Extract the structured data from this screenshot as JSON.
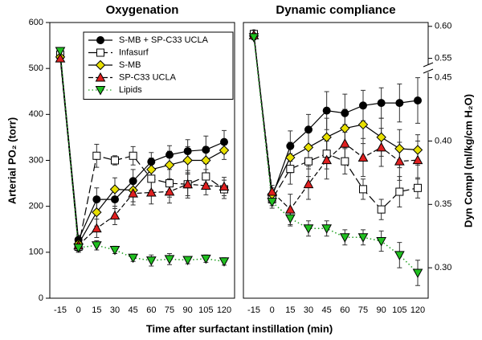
{
  "chart_data": [
    {
      "type": "line",
      "title": "Oxygenation",
      "y_label": "Arterial PO₂ (torr)",
      "x_label": "Time after surfactant instillation (min)",
      "categories": [
        "-15",
        "0",
        "15",
        "30",
        "45",
        "60",
        "75",
        "90",
        "105",
        "120"
      ],
      "ylim": [
        0,
        600
      ],
      "yticks": [
        0,
        100,
        200,
        300,
        400,
        500,
        600
      ],
      "y_side": "left",
      "legend": "upper right",
      "series": [
        {
          "name": "S-MB + SP-C33 UCLA",
          "marker": "circle",
          "color": "#000000",
          "line_color": "#000000",
          "line_style": "solid",
          "values": [
            535,
            127,
            215,
            215,
            255,
            297,
            312,
            320,
            323,
            340
          ],
          "errors": [
            5,
            10,
            25,
            20,
            25,
            20,
            20,
            25,
            30,
            25
          ]
        },
        {
          "name": "Infasurf",
          "marker": "square",
          "color": "#ffffff",
          "line_color": "#000000",
          "line_style": "longdash",
          "values": [
            530,
            112,
            310,
            300,
            310,
            260,
            250,
            248,
            265,
            237
          ],
          "errors": [
            5,
            10,
            25,
            10,
            20,
            25,
            30,
            30,
            15,
            20
          ]
        },
        {
          "name": "S-MB",
          "marker": "diamond",
          "color": "#e8e000",
          "line_color": "#000000",
          "line_style": "solid",
          "values": [
            525,
            118,
            187,
            237,
            235,
            280,
            290,
            300,
            300,
            322
          ],
          "errors": [
            5,
            10,
            30,
            25,
            25,
            25,
            30,
            30,
            30,
            20
          ]
        },
        {
          "name": "SP-C33 UCLA",
          "marker": "triangle-up",
          "color": "#e02020",
          "line_color": "#000000",
          "line_style": "dashed",
          "values": [
            522,
            115,
            152,
            180,
            228,
            230,
            232,
            248,
            245,
            243
          ],
          "errors": [
            5,
            10,
            20,
            20,
            25,
            25,
            25,
            25,
            20,
            20
          ]
        },
        {
          "name": "Lipids",
          "marker": "triangle-down",
          "color": "#20c020",
          "line_color": "#20a020",
          "line_style": "dotted",
          "values": [
            538,
            110,
            115,
            105,
            88,
            82,
            85,
            83,
            86,
            80
          ],
          "errors": [
            5,
            10,
            10,
            8,
            8,
            12,
            12,
            8,
            8,
            8
          ]
        }
      ]
    },
    {
      "type": "line",
      "title": "Dynamic compliance",
      "y_label": "Dyn Compl (ml/kg/cm H₂O)",
      "categories": [
        "-15",
        "0",
        "15",
        "30",
        "45",
        "60",
        "75",
        "90",
        "105",
        "120"
      ],
      "ylim": [
        0.276,
        0.606
      ],
      "ybreak": [
        0.45,
        0.55
      ],
      "yticks": [
        {
          "value": 0.3,
          "label": "0.30"
        },
        0.35,
        {
          "value": 0.4,
          "label": "0.40"
        },
        0.45,
        0.55,
        {
          "value": 0.6,
          "label": "0.60"
        }
      ],
      "y_side": "right",
      "series": [
        {
          "marker": "circle",
          "color": "#000000",
          "line_color": "#000000",
          "line_style": "solid",
          "values": [
            0.589,
            0.356,
            0.396,
            0.409,
            0.424,
            0.422,
            0.428,
            0.43,
            0.43,
            0.432
          ],
          "errors": [
            0.004,
            0.005,
            0.012,
            0.012,
            0.015,
            0.015,
            0.012,
            0.012,
            0.015,
            0.018
          ]
        },
        {
          "marker": "square",
          "color": "#ffffff",
          "line_color": "#000000",
          "line_style": "longdash",
          "values": [
            0.588,
            0.354,
            0.378,
            0.384,
            0.39,
            0.384,
            0.362,
            0.346,
            0.36,
            0.363
          ],
          "errors": [
            0.004,
            0.005,
            0.012,
            0.012,
            0.012,
            0.01,
            0.008,
            0.008,
            0.012,
            0.008
          ]
        },
        {
          "marker": "diamond",
          "color": "#e8e000",
          "line_color": "#000000",
          "line_style": "solid",
          "values": [
            0.585,
            0.358,
            0.387,
            0.395,
            0.403,
            0.41,
            0.413,
            0.403,
            0.394,
            0.393
          ],
          "errors": [
            0.004,
            0.005,
            0.012,
            0.015,
            0.015,
            0.015,
            0.015,
            0.015,
            0.015,
            0.012
          ]
        },
        {
          "marker": "triangle-up",
          "color": "#e02020",
          "line_color": "#000000",
          "line_style": "dashed",
          "values": [
            0.586,
            0.36,
            0.346,
            0.366,
            0.385,
            0.398,
            0.387,
            0.395,
            0.384,
            0.385
          ],
          "errors": [
            0.004,
            0.005,
            0.012,
            0.012,
            0.015,
            0.015,
            0.015,
            0.015,
            0.015,
            0.015
          ]
        },
        {
          "marker": "triangle-down",
          "color": "#20c020",
          "line_color": "#20a020",
          "line_style": "dotted",
          "values": [
            0.583,
            0.352,
            0.339,
            0.331,
            0.331,
            0.324,
            0.324,
            0.321,
            0.31,
            0.296
          ],
          "errors": [
            0.004,
            0.005,
            0.006,
            0.006,
            0.006,
            0.006,
            0.006,
            0.008,
            0.01,
            0.01
          ]
        }
      ]
    }
  ]
}
